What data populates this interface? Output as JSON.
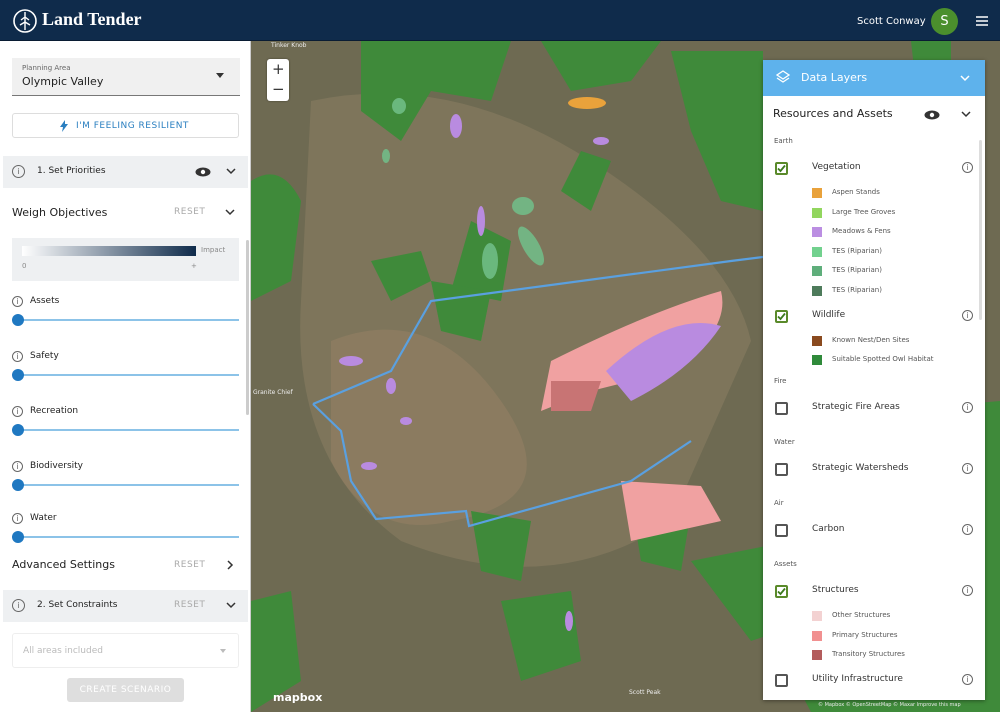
{
  "header": {
    "app_name": "Land Tender",
    "user_name": "Scott Conway",
    "avatar_initial": "S"
  },
  "sidebar": {
    "planning_area_label": "Planning Area",
    "planning_area_value": "Olympic Valley",
    "resilient_button": "I'M FEELING RESILIENT",
    "step1_title": "1. Set Priorities",
    "weigh_objectives": "Weigh Objectives",
    "weigh_reset": "RESET",
    "impact_legend": {
      "label": "Impact",
      "min": "0",
      "max": "+"
    },
    "objectives": [
      "Assets",
      "Safety",
      "Recreation",
      "Biodiversity",
      "Water"
    ],
    "advanced_settings": "Advanced Settings",
    "advanced_reset": "RESET",
    "step2_title": "2. Set Constraints",
    "step2_reset": "RESET",
    "constraints_placeholder": "All areas included",
    "create_button": "CREATE SCENARIO"
  },
  "map": {
    "place_labels": [
      "Tinker Knob",
      "Granite Chief",
      "Scott Peak"
    ],
    "logo": "mapbox",
    "attribution": "© Mapbox © OpenStreetMap © Maxar Improve this map",
    "zoom_in": "+",
    "zoom_out": "−"
  },
  "layers_panel": {
    "title": "Data Layers",
    "section": "Resources and Assets",
    "groups": [
      {
        "name": "Earth",
        "layers": [
          {
            "name": "Vegetation",
            "checked": true,
            "items": [
              {
                "label": "Aspen Stands",
                "color": "#e9a23b"
              },
              {
                "label": "Large Tree Groves",
                "color": "#92d65e"
              },
              {
                "label": "Meadows & Fens",
                "color": "#bb8ee2"
              },
              {
                "label": "TES (Riparian)",
                "color": "#72d18e"
              },
              {
                "label": "TES (Riparian)",
                "color": "#5fae7b"
              },
              {
                "label": "TES (Riparian)",
                "color": "#4e7b5b"
              }
            ]
          },
          {
            "name": "Wildlife",
            "checked": true,
            "items": [
              {
                "label": "Known Nest/Den Sites",
                "color": "#8a4a1f"
              },
              {
                "label": "Suitable Spotted Owl Habitat",
                "color": "#2f8a3a"
              }
            ]
          }
        ]
      },
      {
        "name": "Fire",
        "layers": [
          {
            "name": "Strategic Fire Areas",
            "checked": false,
            "items": []
          }
        ]
      },
      {
        "name": "Water",
        "layers": [
          {
            "name": "Strategic Watersheds",
            "checked": false,
            "items": []
          }
        ]
      },
      {
        "name": "Air",
        "layers": [
          {
            "name": "Carbon",
            "checked": false,
            "items": []
          }
        ]
      },
      {
        "name": "Assets",
        "layers": [
          {
            "name": "Structures",
            "checked": true,
            "items": [
              {
                "label": "Other Structures",
                "color": "#f3d2d2"
              },
              {
                "label": "Primary Structures",
                "color": "#f19090"
              },
              {
                "label": "Transitory Structures",
                "color": "#b35c5c"
              }
            ]
          },
          {
            "name": "Utility Infrastructure",
            "checked": false,
            "items": []
          }
        ]
      }
    ]
  }
}
